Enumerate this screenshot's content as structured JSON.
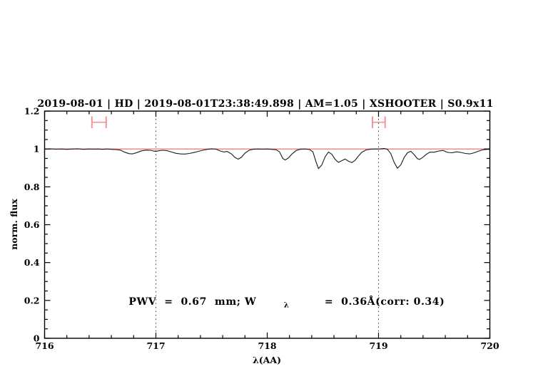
{
  "title": "2019-08-01 | HD | 2019-08-01T23:38:49.898 | AM=1.05 | XSHOOTER | S0.9x11",
  "annotation": {
    "part1": "PWV  =  0.67  mm; W",
    "sub": "λ",
    "part2": "  =  0.36Å(corr: 0.34)"
  },
  "colors": {
    "title_blue": "#1515dd",
    "annotation_blue": "#1515dd",
    "spectrum_black": "#1a1a1a",
    "continuum_red": "#ee8080",
    "errorbar_red": "#f29494",
    "frame_black": "#000000",
    "guide_gray": "#3a3a3a"
  },
  "chart_data": {
    "type": "line",
    "title": "2019-08-01 | HD | 2019-08-01T23:38:49.898 | AM=1.05 | XSHOOTER | S0.9x11",
    "xlabel": "λ(AA)",
    "ylabel": "norm. flux",
    "xlim": [
      716,
      720
    ],
    "ylim": [
      0,
      1.2
    ],
    "grid": false,
    "x_major_ticks": [
      716,
      717,
      718,
      719,
      720
    ],
    "x_tick_labels": [
      "716",
      "717",
      "718",
      "719",
      "720"
    ],
    "x_minor_step": 0.2,
    "y_major_ticks": [
      0,
      0.2,
      0.4,
      0.6,
      0.8,
      1,
      1.2
    ],
    "y_tick_labels": [
      "0",
      "0.2",
      "0.4",
      "0.6",
      "0.8",
      "1",
      "1.2"
    ],
    "y_minor_step": 0.05,
    "vertical_dotted_guides_x": [
      717,
      719
    ],
    "annotation_text": "PWV = 0.67 mm; Wλ = 0.36Å(corr: 0.34)",
    "annotation_xy": [
      716.51,
      0.19
    ],
    "series": [
      {
        "name": "observed normalized spectrum",
        "color": "#1a1a1a",
        "x": [
          716.0,
          716.05,
          716.1,
          716.15,
          716.2,
          716.25,
          716.3,
          716.35,
          716.4,
          716.44,
          716.48,
          716.52,
          716.56,
          716.6,
          716.64,
          716.68,
          716.72,
          716.76,
          716.79,
          716.83,
          716.87,
          716.91,
          716.95,
          716.98,
          717.0,
          717.03,
          717.06,
          717.1,
          717.14,
          717.18,
          717.22,
          717.26,
          717.3,
          717.34,
          717.38,
          717.42,
          717.46,
          717.5,
          717.54,
          717.58,
          717.61,
          717.64,
          717.68,
          717.71,
          717.74,
          717.77,
          717.8,
          717.84,
          717.88,
          717.92,
          717.96,
          718.0,
          718.04,
          718.08,
          718.11,
          718.14,
          718.16,
          718.19,
          718.22,
          718.26,
          718.3,
          718.34,
          718.38,
          718.41,
          718.44,
          718.46,
          718.49,
          718.52,
          718.55,
          718.58,
          718.61,
          718.64,
          718.67,
          718.7,
          718.73,
          718.76,
          718.79,
          718.82,
          718.85,
          718.89,
          718.93,
          718.97,
          719.01,
          719.05,
          719.08,
          719.11,
          719.14,
          719.17,
          719.2,
          719.23,
          719.26,
          719.29,
          719.32,
          719.35,
          719.37,
          719.4,
          719.43,
          719.46,
          719.5,
          719.54,
          719.58,
          719.62,
          719.66,
          719.7,
          719.74,
          719.78,
          719.82,
          719.86,
          719.9,
          719.94,
          719.98,
          720.0
        ],
        "y": [
          0.999,
          1.001,
          0.999,
          1.0,
          0.998,
          1.0,
          1.001,
          0.998,
          1.0,
          0.999,
          1.0,
          0.998,
          1.0,
          0.998,
          0.997,
          0.994,
          0.983,
          0.975,
          0.974,
          0.981,
          0.99,
          0.994,
          0.993,
          0.989,
          0.987,
          0.991,
          0.993,
          0.991,
          0.984,
          0.977,
          0.974,
          0.973,
          0.976,
          0.981,
          0.987,
          0.993,
          0.998,
          1.001,
          0.999,
          0.989,
          0.984,
          0.987,
          0.973,
          0.955,
          0.946,
          0.957,
          0.978,
          0.994,
          0.999,
          1.0,
          0.999,
          1.0,
          0.998,
          0.996,
          0.985,
          0.95,
          0.942,
          0.952,
          0.972,
          0.992,
          0.999,
          1.0,
          0.997,
          0.985,
          0.93,
          0.896,
          0.915,
          0.958,
          0.984,
          0.972,
          0.945,
          0.929,
          0.938,
          0.947,
          0.935,
          0.928,
          0.94,
          0.963,
          0.983,
          0.995,
          0.999,
          1.0,
          1.0,
          1.003,
          0.998,
          0.975,
          0.93,
          0.898,
          0.916,
          0.955,
          0.98,
          0.988,
          0.97,
          0.948,
          0.945,
          0.957,
          0.972,
          0.983,
          0.983,
          0.989,
          0.992,
          0.982,
          0.98,
          0.985,
          0.982,
          0.976,
          0.974,
          0.98,
          0.989,
          0.996,
          0.998,
          0.998
        ]
      },
      {
        "name": "continuum model",
        "color": "#ee8080",
        "x": [
          716.0,
          720.0
        ],
        "y": [
          1.0,
          1.0
        ]
      }
    ],
    "error_bars": [
      {
        "x_min": 716.425,
        "x_max": 716.553,
        "y": 1.141,
        "cap_half": 0.031
      },
      {
        "x_min": 718.946,
        "x_max": 719.059,
        "y": 1.141,
        "cap_half": 0.031
      }
    ]
  }
}
